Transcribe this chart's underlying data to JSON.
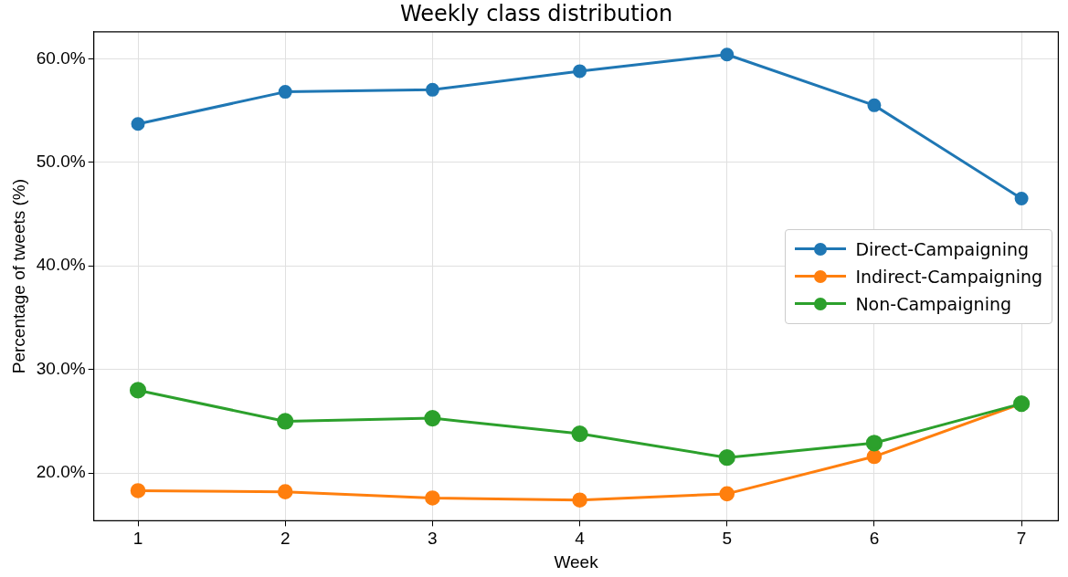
{
  "chart_data": {
    "type": "line",
    "title": "Weekly class distribution",
    "xlabel": "Week",
    "ylabel": "Percentage of tweets (%)",
    "x": [
      1,
      2,
      3,
      4,
      5,
      6,
      7
    ],
    "series": [
      {
        "name": "Direct-Campaigning",
        "color": "#1f77b4",
        "values": [
          53.7,
          56.8,
          57.0,
          58.8,
          60.4,
          55.5,
          46.5
        ]
      },
      {
        "name": "Indirect-Campaigning",
        "color": "#ff7f0e",
        "values": [
          18.3,
          18.2,
          17.6,
          17.4,
          18.0,
          21.6,
          26.7
        ]
      },
      {
        "name": "Non-Campaigning",
        "color": "#2ca02c",
        "values": [
          28.0,
          25.0,
          25.3,
          23.8,
          21.5,
          22.9,
          26.7
        ]
      }
    ],
    "xlim": [
      0.7,
      7.25
    ],
    "xticks": [
      1,
      2,
      3,
      4,
      5,
      6,
      7
    ],
    "ylim": [
      15.4,
      62.6
    ],
    "yticks": [
      {
        "value": 20,
        "label": "20.0%"
      },
      {
        "value": 30,
        "label": "30.0%"
      },
      {
        "value": 40,
        "label": "40.0%"
      },
      {
        "value": 50,
        "label": "50.0%"
      },
      {
        "value": 60,
        "label": "60.0%"
      }
    ],
    "grid": true,
    "legend": "right",
    "marker": "circle",
    "line_style": "solid"
  }
}
